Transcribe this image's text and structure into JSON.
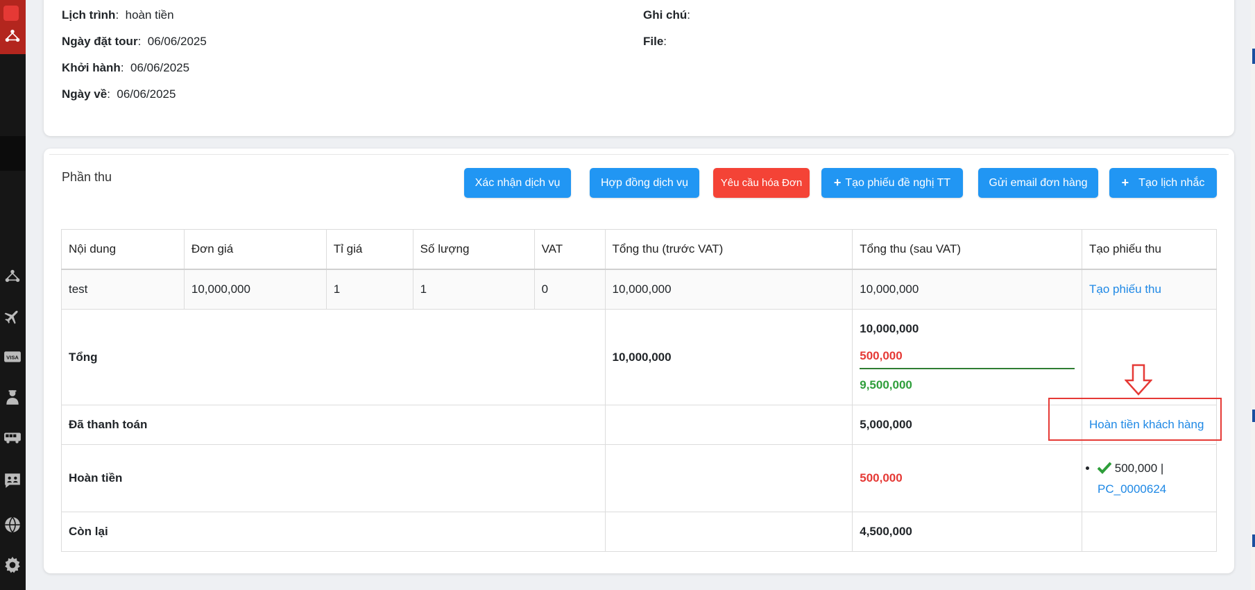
{
  "info": {
    "schedule_label": "Lịch trình",
    "schedule_value": "hoàn tiền",
    "booking_date_label": "Ngày đặt tour",
    "booking_date_value": "06/06/2025",
    "departure_label": "Khởi hành",
    "departure_value": "06/06/2025",
    "return_label": "Ngày về",
    "return_value": "06/06/2025",
    "note_label": "Ghi chú",
    "note_value": "",
    "file_label": "File",
    "file_value": ""
  },
  "section": {
    "title": "Phần thu"
  },
  "toolbar": {
    "confirm_service": "Xác nhận dịch vụ",
    "service_contract": "Hợp đồng dịch vụ",
    "invoice_request": "Yêu cầu hóa Đơn",
    "payment_request": "Tạo phiếu đề nghị TT",
    "send_email": "Gửi email đơn hàng",
    "create_reminder": "Tạo lịch nhắc"
  },
  "table": {
    "headers": [
      "Nội dung",
      "Đơn giá",
      "Tỉ giá",
      "Số lượng",
      "VAT",
      "Tổng thu (trước VAT)",
      "Tổng thu (sau VAT)",
      "Tạo phiếu thu"
    ],
    "item": {
      "content": "test",
      "unit_price": "10,000,000",
      "rate": "1",
      "quantity": "1",
      "vat": "0",
      "total_before_vat": "10,000,000",
      "total_after_vat": "10,000,000",
      "action": "Tạo phiếu thu"
    },
    "total": {
      "label": "Tổng",
      "before_vat": "10,000,000",
      "after_vat": "10,000,000",
      "deduction": "500,000",
      "net": "9,500,000"
    },
    "paid": {
      "label": "Đã thanh toán",
      "amount": "5,000,000",
      "action": "Hoàn tiền khách hàng"
    },
    "refund": {
      "label": "Hoàn tiền",
      "amount": "500,000",
      "entries": [
        {
          "amount": "500,000 |",
          "code": "PC_0000624"
        }
      ]
    },
    "remaining": {
      "label": "Còn lại",
      "amount": "4,500,000"
    }
  },
  "colors": {
    "primary": "#2196f3",
    "danger": "#f44336",
    "success": "#2e9e3a",
    "link": "#1e88e5",
    "annotation": "#e53935"
  }
}
